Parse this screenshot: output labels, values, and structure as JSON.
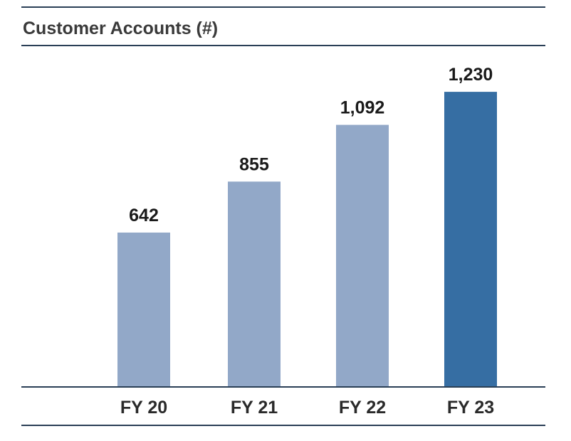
{
  "chart_data": {
    "type": "bar",
    "title": "Customer Accounts (#)",
    "categories": [
      "FY 20",
      "FY 21",
      "FY 22",
      "FY 23"
    ],
    "values": [
      642,
      855,
      1092,
      1230
    ],
    "value_labels": [
      "642",
      "855",
      "1,092",
      "1,230"
    ],
    "ylim": [
      0,
      1300
    ],
    "grid": false,
    "colors": {
      "bar": "#92a8c8",
      "highlight": "#366ea3",
      "rule": "#2a3f56"
    },
    "highlight_index": 3
  }
}
